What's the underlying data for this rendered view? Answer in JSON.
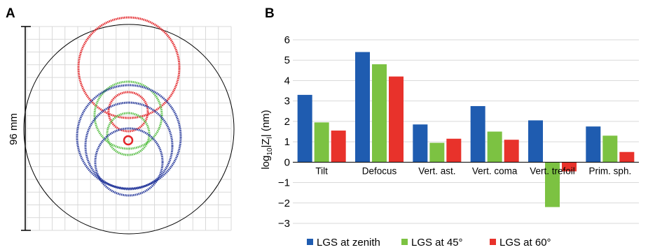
{
  "colors": {
    "blue": "#1f5cb0",
    "green": "#7cc242",
    "red": "#e8322b",
    "grid": "#d9d9d9",
    "axis": "#000000",
    "diagram_blue": "#2b3d9e",
    "diagram_green": "#5cc14a",
    "diagram_red": "#e3262a"
  },
  "panel_a": {
    "label": "A",
    "scale_label": "96 mm"
  },
  "panel_b": {
    "label": "B"
  },
  "chart_data": {
    "type": "bar",
    "categories": [
      "Tilt",
      "Defocus",
      "Vert. ast.",
      "Vert. coma",
      "Vert. trefoil",
      "Prim. sph."
    ],
    "series": [
      {
        "name": "LGS at zenith",
        "color": "#1f5cb0",
        "values": [
          3.3,
          5.4,
          1.85,
          2.75,
          2.05,
          1.75
        ]
      },
      {
        "name": "LGS at 45°",
        "color": "#7cc242",
        "values": [
          1.95,
          4.8,
          0.95,
          1.5,
          -2.2,
          1.3
        ]
      },
      {
        "name": "LGS at 60°",
        "color": "#e8322b",
        "values": [
          1.55,
          4.2,
          1.15,
          1.1,
          -0.45,
          0.5
        ]
      }
    ],
    "ylabel_main": "log",
    "ylabel_sub1": "10",
    "ylabel_abs": "|Z",
    "ylabel_sub2": "l",
    "ylabel_tail": "| (nm)",
    "ylim": [
      -3,
      6
    ],
    "yticks": [
      6,
      5,
      4,
      3,
      2,
      1,
      0,
      -1,
      -2,
      -3
    ],
    "ytick_labels": [
      "6",
      "5",
      "4",
      "3",
      "2",
      "1",
      "0",
      "−1",
      "−2",
      "−3"
    ],
    "grid": true,
    "legend_position": "bottom"
  }
}
